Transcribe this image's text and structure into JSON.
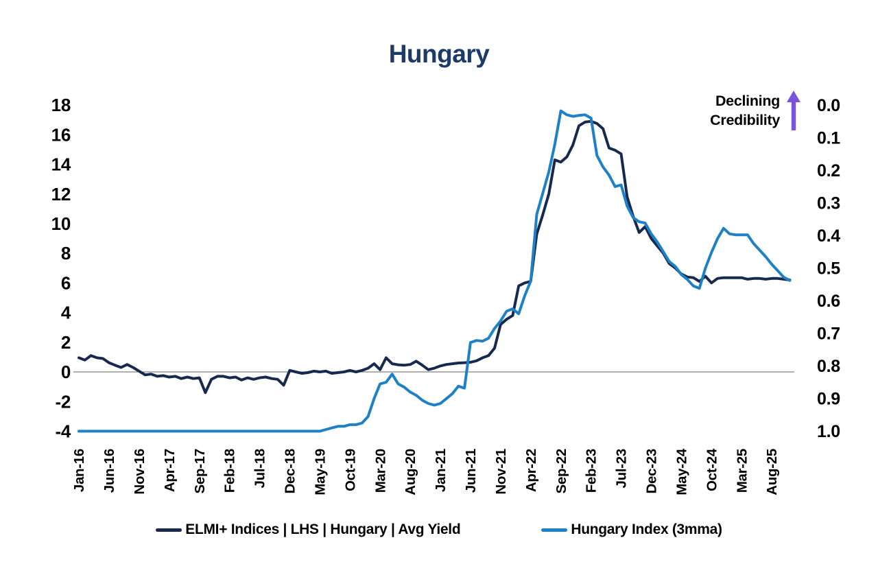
{
  "title": "Hungary",
  "annotation": {
    "line1": "Declining",
    "line2": "Credibility",
    "arrow_direction": "up"
  },
  "legend": [
    {
      "label": "ELMI+ Indices | LHS | Hungary | Avg Yield",
      "color": "#17294e"
    },
    {
      "label": "Hungary Index (3mma)",
      "color": "#1e81c6"
    }
  ],
  "colors": {
    "navy": "#17294e",
    "blue": "#1e81c6",
    "title": "#1e3a66",
    "purple": "#7b52dd",
    "zero_line": "#808080",
    "text": "#000000",
    "background": "#ffffff"
  },
  "chart_data": {
    "type": "line",
    "title": "Hungary",
    "gridlines": "zero-line-only",
    "legend_position": "bottom",
    "left_axis": {
      "ticks": [
        18,
        16,
        14,
        12,
        10,
        8,
        6,
        4,
        2,
        0,
        -2,
        -4
      ],
      "range": [
        -4,
        18
      ]
    },
    "right_axis": {
      "ticks": [
        "0.0",
        "0.1",
        "0.2",
        "0.3",
        "0.4",
        "0.5",
        "0.6",
        "0.7",
        "0.8",
        "0.9",
        "1.0"
      ],
      "range": [
        0,
        1
      ],
      "inverted": true
    },
    "x_tick_labels": [
      "Jan-16",
      "Jun-16",
      "Nov-16",
      "Apr-17",
      "Sep-17",
      "Feb-18",
      "Jul-18",
      "Dec-18",
      "May-19",
      "Oct-19",
      "Mar-20",
      "Aug-20",
      "Jan-21",
      "Jun-21",
      "Nov-21",
      "Apr-22",
      "Sep-22",
      "Feb-23",
      "Jul-23",
      "Dec-23",
      "May-24",
      "Oct-24",
      "Mar-25",
      "Aug-25"
    ],
    "x_tick_every_n_months": 5,
    "months": [
      "Jan-16",
      "Feb-16",
      "Mar-16",
      "Apr-16",
      "May-16",
      "Jun-16",
      "Jul-16",
      "Aug-16",
      "Sep-16",
      "Oct-16",
      "Nov-16",
      "Dec-16",
      "Jan-17",
      "Feb-17",
      "Mar-17",
      "Apr-17",
      "May-17",
      "Jun-17",
      "Jul-17",
      "Aug-17",
      "Sep-17",
      "Oct-17",
      "Nov-17",
      "Dec-17",
      "Jan-18",
      "Feb-18",
      "Mar-18",
      "Apr-18",
      "May-18",
      "Jun-18",
      "Jul-18",
      "Aug-18",
      "Sep-18",
      "Oct-18",
      "Nov-18",
      "Dec-18",
      "Jan-19",
      "Feb-19",
      "Mar-19",
      "Apr-19",
      "May-19",
      "Jun-19",
      "Jul-19",
      "Aug-19",
      "Sep-19",
      "Oct-19",
      "Nov-19",
      "Dec-19",
      "Jan-20",
      "Feb-20",
      "Mar-20",
      "Apr-20",
      "May-20",
      "Jun-20",
      "Jul-20",
      "Aug-20",
      "Sep-20",
      "Oct-20",
      "Nov-20",
      "Dec-20",
      "Jan-21",
      "Feb-21",
      "Mar-21",
      "Apr-21",
      "May-21",
      "Jun-21",
      "Jul-21",
      "Aug-21",
      "Sep-21",
      "Oct-21",
      "Nov-21",
      "Dec-21",
      "Jan-22",
      "Feb-22",
      "Mar-22",
      "Apr-22",
      "May-22",
      "Jun-22",
      "Jul-22",
      "Aug-22",
      "Sep-22",
      "Oct-22",
      "Nov-22",
      "Dec-22",
      "Jan-23",
      "Feb-23",
      "Mar-23",
      "Apr-23",
      "May-23",
      "Jun-23",
      "Jul-23",
      "Aug-23",
      "Sep-23",
      "Oct-23",
      "Nov-23",
      "Dec-23",
      "Jan-24",
      "Feb-24",
      "Mar-24",
      "Apr-24",
      "May-24",
      "Jun-24",
      "Jul-24",
      "Aug-24",
      "Sep-24",
      "Oct-24",
      "Nov-24",
      "Dec-24",
      "Jan-25",
      "Feb-25",
      "Mar-25",
      "Apr-25",
      "May-25",
      "Jun-25",
      "Jul-25",
      "Aug-25",
      "Sep-25",
      "Oct-25",
      "Nov-25"
    ],
    "series": [
      {
        "name": "ELMI+ Indices | LHS | Hungary | Avg Yield",
        "axis": "left",
        "color": "#17294e",
        "values": [
          0.95,
          0.8,
          1.1,
          0.95,
          0.9,
          0.62,
          0.45,
          0.3,
          0.5,
          0.3,
          0.05,
          -0.2,
          -0.15,
          -0.3,
          -0.25,
          -0.35,
          -0.3,
          -0.45,
          -0.35,
          -0.45,
          -0.4,
          -1.4,
          -0.5,
          -0.3,
          -0.3,
          -0.4,
          -0.35,
          -0.55,
          -0.4,
          -0.5,
          -0.4,
          -0.35,
          -0.45,
          -0.5,
          -0.9,
          0.1,
          0.0,
          -0.1,
          -0.05,
          0.05,
          0.0,
          0.05,
          -0.1,
          -0.05,
          0.0,
          0.1,
          0.0,
          0.1,
          0.25,
          0.55,
          0.15,
          0.95,
          0.55,
          0.48,
          0.45,
          0.5,
          0.72,
          0.45,
          0.15,
          0.25,
          0.4,
          0.5,
          0.55,
          0.6,
          0.62,
          0.65,
          0.75,
          0.95,
          1.1,
          1.6,
          3.2,
          3.55,
          3.8,
          5.8,
          6.0,
          6.1,
          9.3,
          10.6,
          12.0,
          14.3,
          14.15,
          14.5,
          15.3,
          16.6,
          16.85,
          16.9,
          16.75,
          16.4,
          15.1,
          14.95,
          14.7,
          11.8,
          10.5,
          9.4,
          9.8,
          9.0,
          8.5,
          8.0,
          7.3,
          7.0,
          6.6,
          6.4,
          6.35,
          6.1,
          6.45,
          6.0,
          6.3,
          6.35,
          6.35,
          6.35,
          6.35,
          6.25,
          6.3,
          6.3,
          6.25,
          6.3,
          6.3,
          6.25,
          6.2
        ]
      },
      {
        "name": "Hungary Index (3mma)",
        "axis": "right",
        "color": "#1e81c6",
        "values": [
          1.0,
          1.0,
          1.0,
          1.0,
          1.0,
          1.0,
          1.0,
          1.0,
          1.0,
          1.0,
          1.0,
          1.0,
          1.0,
          1.0,
          1.0,
          1.0,
          1.0,
          1.0,
          1.0,
          1.0,
          1.0,
          1.0,
          1.0,
          1.0,
          1.0,
          1.0,
          1.0,
          1.0,
          1.0,
          1.0,
          1.0,
          1.0,
          1.0,
          1.0,
          1.0,
          1.0,
          1.0,
          1.0,
          1.0,
          1.0,
          1.0,
          0.995,
          0.99,
          0.985,
          0.985,
          0.98,
          0.98,
          0.975,
          0.955,
          0.9,
          0.855,
          0.85,
          0.825,
          0.855,
          0.865,
          0.88,
          0.89,
          0.905,
          0.915,
          0.92,
          0.915,
          0.9,
          0.885,
          0.862,
          0.868,
          0.728,
          0.722,
          0.724,
          0.715,
          0.685,
          0.662,
          0.632,
          0.625,
          0.64,
          0.585,
          0.54,
          0.335,
          0.27,
          0.205,
          0.12,
          0.018,
          0.03,
          0.035,
          0.032,
          0.03,
          0.04,
          0.155,
          0.19,
          0.215,
          0.25,
          0.245,
          0.31,
          0.345,
          0.358,
          0.362,
          0.395,
          0.42,
          0.45,
          0.48,
          0.495,
          0.52,
          0.535,
          0.555,
          0.562,
          0.5,
          0.452,
          0.41,
          0.378,
          0.395,
          0.398,
          0.398,
          0.398,
          0.425,
          0.445,
          0.465,
          0.488,
          0.508,
          0.528,
          0.538
        ]
      }
    ]
  }
}
